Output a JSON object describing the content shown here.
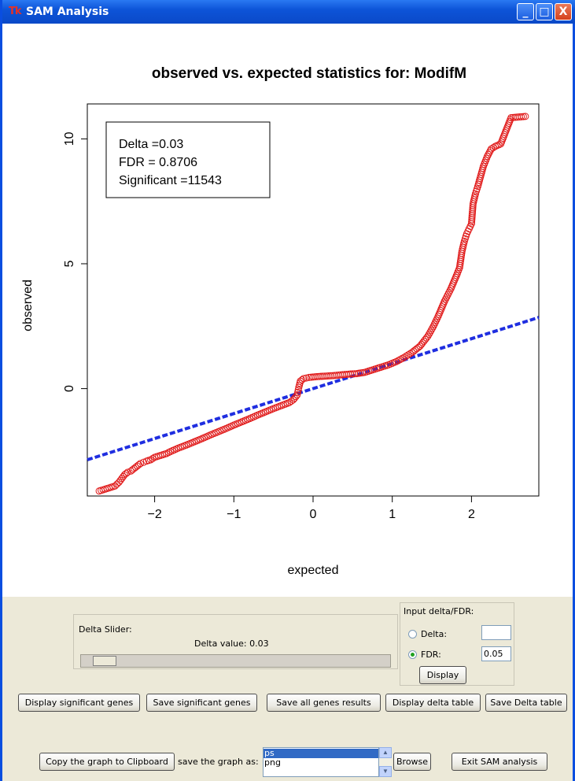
{
  "window": {
    "icon_glyph": "Tk",
    "title": "SAM Analysis",
    "minimize_glyph": "_",
    "maximize_glyph": "□",
    "close_glyph": "X"
  },
  "chart_data": {
    "type": "scatter",
    "title": "observed vs. expected statistics for:  ModifM",
    "xlabel": "expected",
    "ylabel": "observed",
    "xlim": [
      -2.85,
      2.85
    ],
    "ylim": [
      -4.3,
      11.4
    ],
    "x_ticks": [
      -2,
      -1,
      0,
      1,
      2
    ],
    "y_ticks": [
      0,
      5,
      10
    ],
    "legend": {
      "placement": "top-left",
      "lines": [
        "Delta =0.03",
        "FDR = 0.8706",
        "Significant =11543"
      ]
    },
    "reference_line": {
      "slope": 1,
      "intercept": 0,
      "color": "#1f2ee0",
      "style": "dashed"
    },
    "point_color": "#e01818",
    "series": [
      {
        "points": [
          [
            -2.7,
            -4.1
          ],
          [
            -2.5,
            -3.9
          ],
          [
            -2.45,
            -3.75
          ],
          [
            -2.38,
            -3.45
          ],
          [
            -2.34,
            -3.35
          ],
          [
            -2.3,
            -3.3
          ],
          [
            -2.26,
            -3.2
          ],
          [
            -2.22,
            -3.1
          ],
          [
            -2.18,
            -3.0
          ],
          [
            -2.14,
            -2.95
          ],
          [
            -2.1,
            -2.9
          ],
          [
            -2.05,
            -2.85
          ],
          [
            -2.0,
            -2.75
          ],
          [
            -1.95,
            -2.7
          ],
          [
            -1.9,
            -2.65
          ],
          [
            -1.85,
            -2.6
          ],
          [
            -1.8,
            -2.52
          ],
          [
            -1.7,
            -2.38
          ],
          [
            -1.6,
            -2.26
          ],
          [
            -1.5,
            -2.13
          ],
          [
            -1.4,
            -2.0
          ],
          [
            -1.3,
            -1.86
          ],
          [
            -1.2,
            -1.73
          ],
          [
            -1.1,
            -1.6
          ],
          [
            -1.0,
            -1.46
          ],
          [
            -0.9,
            -1.33
          ],
          [
            -0.8,
            -1.2
          ],
          [
            -0.7,
            -1.06
          ],
          [
            -0.6,
            -0.93
          ],
          [
            -0.5,
            -0.8
          ],
          [
            -0.4,
            -0.68
          ],
          [
            -0.3,
            -0.56
          ],
          [
            -0.25,
            -0.45
          ],
          [
            -0.2,
            -0.25
          ],
          [
            -0.18,
            0.05
          ],
          [
            -0.16,
            0.3
          ],
          [
            -0.12,
            0.4
          ],
          [
            -0.05,
            0.45
          ],
          [
            0.05,
            0.48
          ],
          [
            0.15,
            0.5
          ],
          [
            0.25,
            0.52
          ],
          [
            0.35,
            0.55
          ],
          [
            0.45,
            0.58
          ],
          [
            0.55,
            0.6
          ],
          [
            0.65,
            0.65
          ],
          [
            0.75,
            0.75
          ],
          [
            0.85,
            0.85
          ],
          [
            0.95,
            0.95
          ],
          [
            1.05,
            1.08
          ],
          [
            1.15,
            1.25
          ],
          [
            1.25,
            1.45
          ],
          [
            1.35,
            1.7
          ],
          [
            1.45,
            2.1
          ],
          [
            1.52,
            2.5
          ],
          [
            1.58,
            2.9
          ],
          [
            1.62,
            3.2
          ],
          [
            1.66,
            3.5
          ],
          [
            1.7,
            3.75
          ],
          [
            1.74,
            4.0
          ],
          [
            1.78,
            4.3
          ],
          [
            1.82,
            4.6
          ],
          [
            1.85,
            4.85
          ],
          [
            1.88,
            5.5
          ],
          [
            1.91,
            5.9
          ],
          [
            1.94,
            6.2
          ],
          [
            1.97,
            6.4
          ],
          [
            2.0,
            6.6
          ],
          [
            2.02,
            7.4
          ],
          [
            2.05,
            7.8
          ],
          [
            2.08,
            8.1
          ],
          [
            2.15,
            8.9
          ],
          [
            2.2,
            9.3
          ],
          [
            2.25,
            9.6
          ],
          [
            2.3,
            9.7
          ],
          [
            2.37,
            9.8
          ],
          [
            2.5,
            10.85
          ],
          [
            2.68,
            10.9
          ]
        ]
      }
    ]
  },
  "controls": {
    "delta_slider": {
      "label": "Delta Slider:",
      "value_text": "Delta value: 0.03",
      "fraction": 0.02
    },
    "input_group": {
      "label": "Input delta/FDR:",
      "delta_label": "Delta:",
      "delta_value": "",
      "fdr_label": "FDR:",
      "fdr_value": "0.05",
      "display_label": "Display",
      "selected": "FDR"
    },
    "buttons_row1": [
      "Display significant genes",
      "Save significant genes",
      "Save all genes results",
      "Display delta table",
      "Save Delta table"
    ],
    "copy_label": "Copy the graph to Clipboard",
    "save_as_label": "save the graph as:",
    "formats": [
      "ps",
      "png"
    ],
    "selected_format": "ps",
    "browse_label": "Browse",
    "exit_label": "Exit SAM analysis"
  }
}
